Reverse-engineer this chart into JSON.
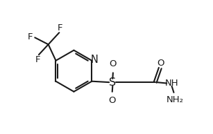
{
  "background": "#ffffff",
  "line_color": "#1a1a1a",
  "line_width": 1.5,
  "font_size": 9.5,
  "fig_width": 3.07,
  "fig_height": 1.94,
  "dpi": 100,
  "xlim": [
    0,
    10.5
  ],
  "ylim": [
    0,
    6.8
  ]
}
